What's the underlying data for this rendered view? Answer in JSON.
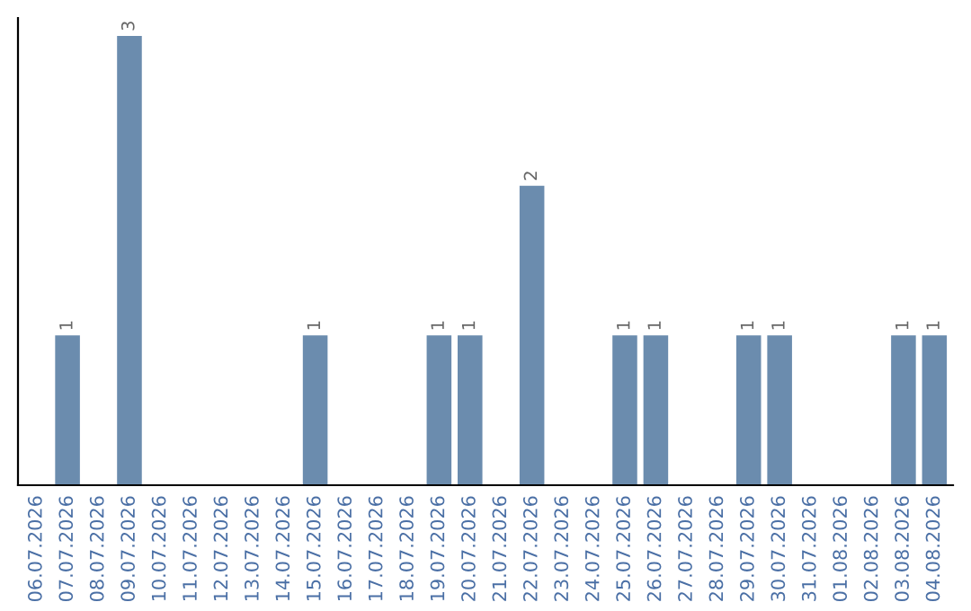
{
  "chart_data": {
    "type": "bar",
    "categories": [
      "06.07.2026",
      "07.07.2026",
      "08.07.2026",
      "09.07.2026",
      "10.07.2026",
      "11.07.2026",
      "12.07.2026",
      "13.07.2026",
      "14.07.2026",
      "15.07.2026",
      "16.07.2026",
      "17.07.2026",
      "18.07.2026",
      "19.07.2026",
      "20.07.2026",
      "21.07.2026",
      "22.07.2026",
      "23.07.2026",
      "24.07.2026",
      "25.07.2026",
      "26.07.2026",
      "27.07.2026",
      "28.07.2026",
      "29.07.2026",
      "30.07.2026",
      "31.07.2026",
      "01.08.2026",
      "02.08.2026",
      "03.08.2026",
      "04.08.2026"
    ],
    "values": [
      0,
      1,
      0,
      3,
      0,
      0,
      0,
      0,
      0,
      1,
      0,
      0,
      0,
      1,
      1,
      0,
      2,
      0,
      0,
      1,
      1,
      0,
      0,
      1,
      1,
      0,
      0,
      0,
      1,
      1
    ],
    "value_labels": [
      null,
      "1",
      null,
      "3",
      null,
      null,
      null,
      null,
      null,
      "1",
      null,
      null,
      null,
      "1",
      "1",
      null,
      "2",
      null,
      null,
      "1",
      "1",
      null,
      null,
      "1",
      "1",
      null,
      null,
      null,
      "1",
      "1"
    ],
    "color": "#6b8cae",
    "ylim": [
      0,
      3.12
    ],
    "tick_labels": "x",
    "grid": false
  }
}
